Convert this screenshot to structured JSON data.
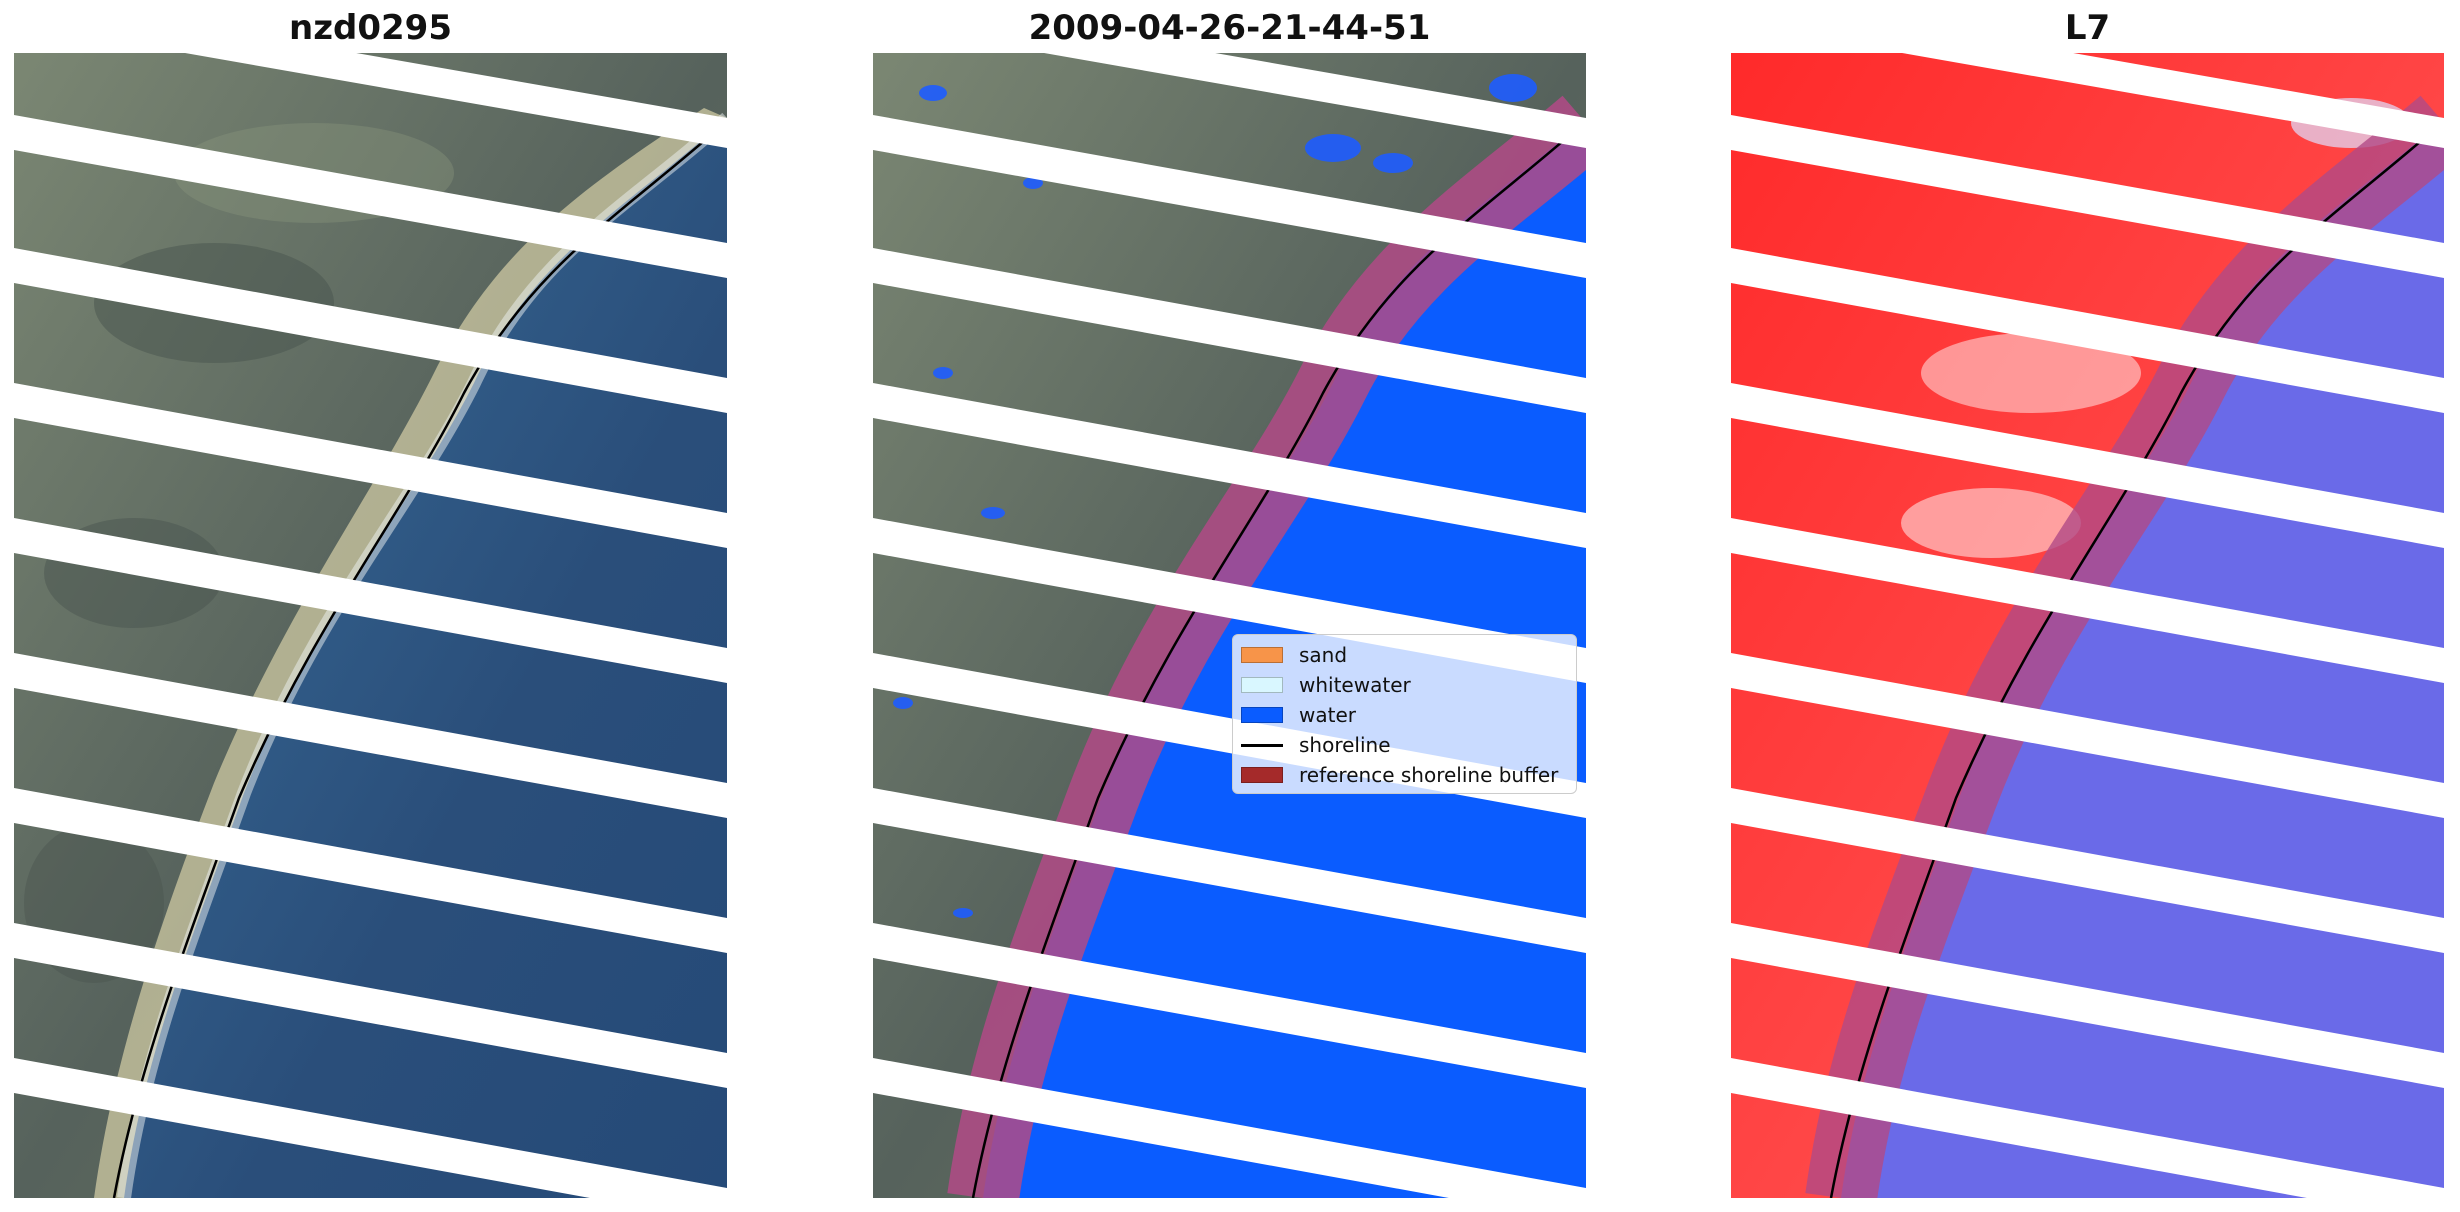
{
  "panels": [
    {
      "id": "rgb",
      "title": "nzd0295"
    },
    {
      "id": "classified",
      "title": "2009-04-26-21-44-51"
    },
    {
      "id": "index",
      "title": "L7"
    }
  ],
  "legend": {
    "items": [
      {
        "label": "sand",
        "color": "#f79449",
        "kind": "patch"
      },
      {
        "label": "whitewater",
        "color": "#d9f7ff",
        "kind": "patch"
      },
      {
        "label": "water",
        "color": "#0a5cff",
        "kind": "patch"
      },
      {
        "label": "shoreline",
        "color": "#000000",
        "kind": "line"
      },
      {
        "label": "reference shoreline buffer",
        "color": "#a52a2a",
        "kind": "patch"
      }
    ]
  },
  "colors": {
    "land": "#5f6b63",
    "sea_rgb": "#2a4e7a",
    "surf": "#d9cf9f",
    "water_class": "#0a5cff",
    "buffer": "#b24a86",
    "index_land": "#ff1a1a",
    "index_water": "#6a6ae8",
    "stripe": "#ffffff"
  }
}
